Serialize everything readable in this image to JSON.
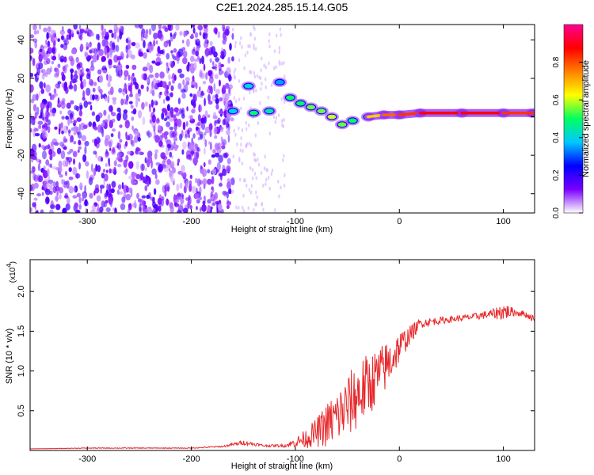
{
  "title": "C2E1.2024.285.15.14.G05",
  "chart_data": [
    {
      "type": "heatmap",
      "xlabel": "Height of straight line (km)",
      "ylabel": "Frequency (Hz)",
      "xlim": [
        -355,
        130
      ],
      "ylim": [
        -50,
        48
      ],
      "xticks": [
        -300,
        -200,
        -100,
        0,
        100
      ],
      "yticks": [
        -40,
        -20,
        0,
        20,
        40
      ],
      "colorbar": {
        "label": "Normalized spectral amplitude",
        "range": [
          0,
          1
        ],
        "ticks": [
          "0.0",
          "0.2",
          "0.4",
          "0.6",
          "0.8"
        ],
        "colors": [
          "#ffffff",
          "#7a00ff",
          "#0000ff",
          "#00c8ff",
          "#00ff60",
          "#ffff00",
          "#ff8000",
          "#ff0000",
          "#ff0090"
        ]
      },
      "noise_region_x": [
        -355,
        -160
      ],
      "ridge": [
        {
          "x": -160,
          "y": 3,
          "amp": 0.4
        },
        {
          "x": -145,
          "y": 16,
          "amp": 0.4
        },
        {
          "x": -140,
          "y": 2,
          "amp": 0.5
        },
        {
          "x": -125,
          "y": 3,
          "amp": 0.45
        },
        {
          "x": -115,
          "y": 18,
          "amp": 0.35
        },
        {
          "x": -105,
          "y": 10,
          "amp": 0.5
        },
        {
          "x": -95,
          "y": 7,
          "amp": 0.5
        },
        {
          "x": -85,
          "y": 5,
          "amp": 0.55
        },
        {
          "x": -75,
          "y": 3,
          "amp": 0.55
        },
        {
          "x": -65,
          "y": 0,
          "amp": 0.6
        },
        {
          "x": -55,
          "y": -4,
          "amp": 0.55
        },
        {
          "x": -45,
          "y": -2,
          "amp": 0.5
        },
        {
          "x": -30,
          "y": 0,
          "amp": 0.6
        },
        {
          "x": -15,
          "y": 1,
          "amp": 0.75
        },
        {
          "x": 0,
          "y": 1,
          "amp": 0.8
        },
        {
          "x": 20,
          "y": 2,
          "amp": 0.85
        },
        {
          "x": 60,
          "y": 2,
          "amp": 0.9
        },
        {
          "x": 100,
          "y": 2,
          "amp": 0.85
        },
        {
          "x": 128,
          "y": 2,
          "amp": 0.8
        }
      ]
    },
    {
      "type": "line",
      "xlabel": "Height of straight line (km)",
      "ylabel": "SNR (10 * v/v)",
      "y_multiplier": "(x10",
      "y_multiplier_exp": "4",
      "xlim": [
        -355,
        130
      ],
      "ylim": [
        0,
        2.4
      ],
      "xticks": [
        -300,
        -200,
        -100,
        0,
        100
      ],
      "yticks": [
        0.5,
        1.0,
        1.5,
        2.0
      ],
      "ytick_labels": [
        "0.5",
        "1.0",
        "1.5",
        "2.0"
      ],
      "series": [
        {
          "color": "#e8282b",
          "x": [
            -355,
            -300,
            -250,
            -200,
            -170,
            -150,
            -130,
            -110,
            -100,
            -90,
            -80,
            -70,
            -60,
            -50,
            -40,
            -30,
            -20,
            -10,
            0,
            10,
            20,
            30,
            50,
            70,
            90,
            100,
            110,
            120,
            130
          ],
          "y": [
            0.02,
            0.03,
            0.03,
            0.03,
            0.05,
            0.1,
            0.06,
            0.06,
            0.1,
            0.15,
            0.22,
            0.32,
            0.42,
            0.55,
            0.7,
            0.82,
            0.95,
            1.1,
            1.3,
            1.45,
            1.6,
            1.62,
            1.65,
            1.68,
            1.72,
            1.75,
            1.74,
            1.72,
            1.65
          ],
          "noise": [
            0.0,
            0.005,
            0.005,
            0.005,
            0.01,
            0.03,
            0.015,
            0.02,
            0.06,
            0.12,
            0.18,
            0.28,
            0.35,
            0.4,
            0.45,
            0.4,
            0.35,
            0.3,
            0.2,
            0.12,
            0.06,
            0.05,
            0.04,
            0.04,
            0.06,
            0.12,
            0.05,
            0.04,
            0.04
          ]
        }
      ]
    }
  ]
}
